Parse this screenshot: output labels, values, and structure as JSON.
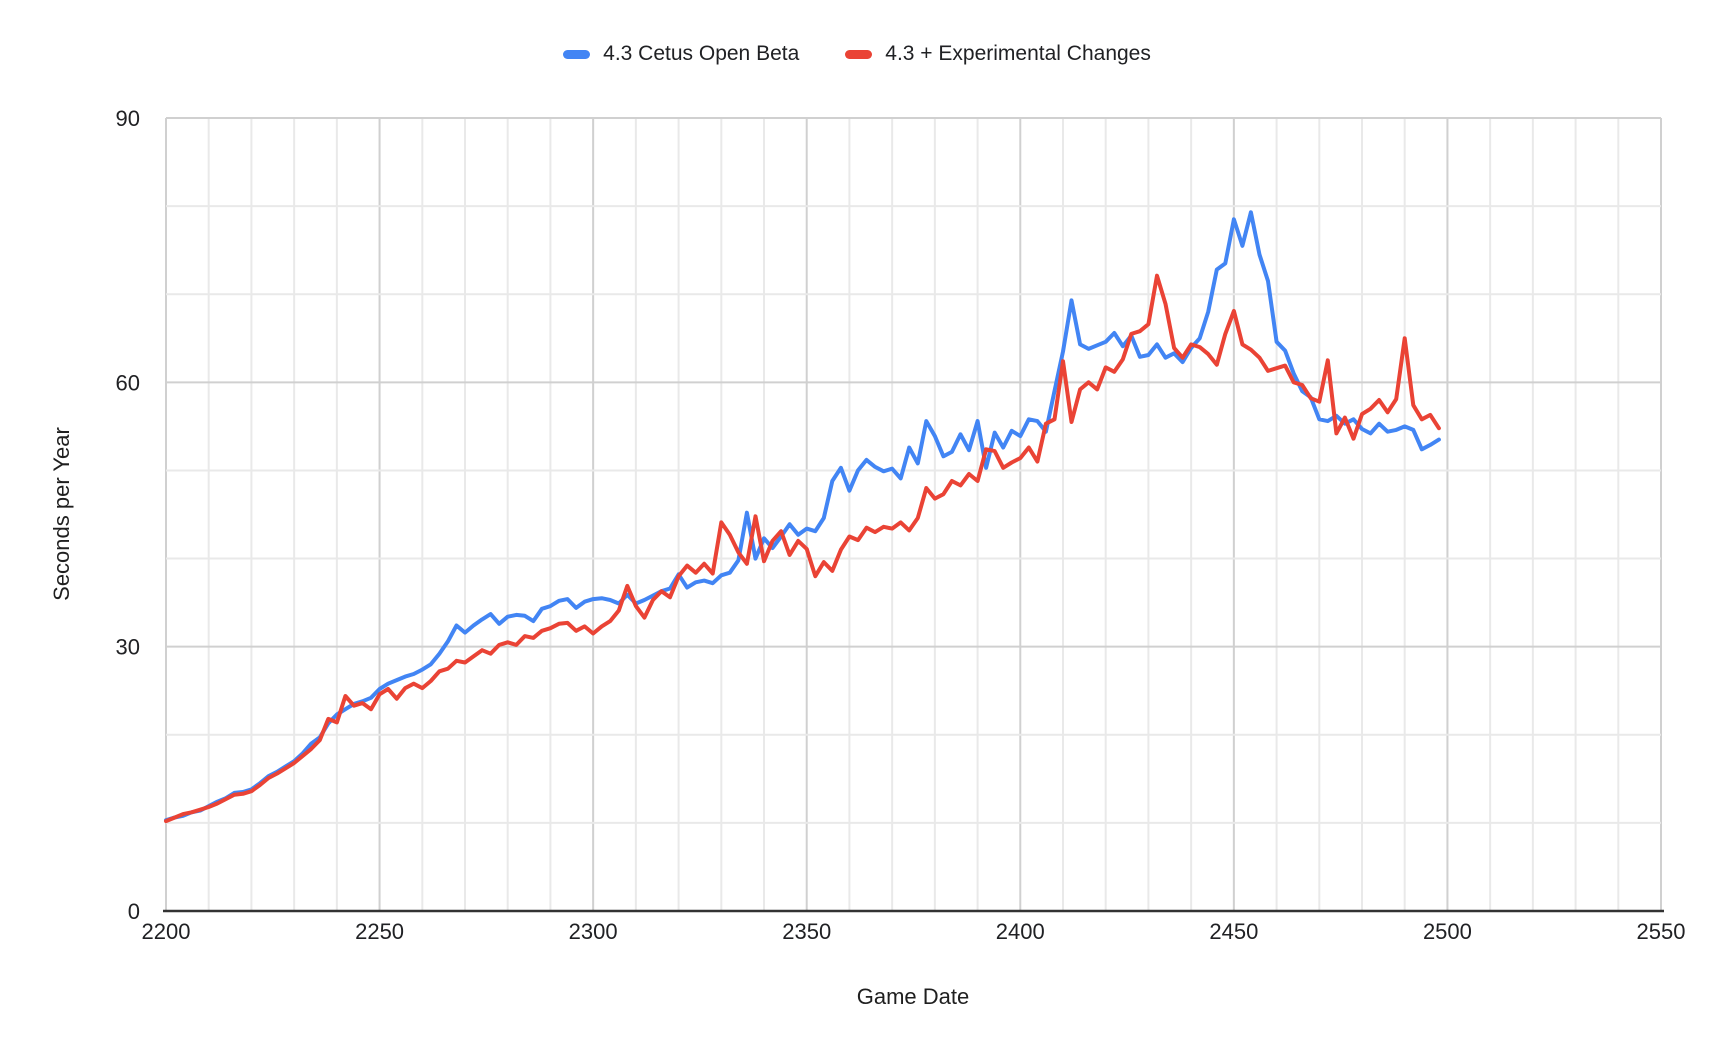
{
  "chart_data": {
    "type": "line",
    "title": "",
    "xlabel": "Game Date",
    "ylabel": "Seconds per Year",
    "xlim": [
      2200,
      2550
    ],
    "ylim": [
      0,
      90
    ],
    "x_ticks": [
      2200,
      2250,
      2300,
      2350,
      2400,
      2450,
      2500,
      2550
    ],
    "y_ticks": [
      0,
      30,
      60,
      90
    ],
    "minor_grid_step_x": 10,
    "minor_grid_step_y": 10,
    "grid": true,
    "legend_position": "top",
    "background_color": "#ffffff",
    "minor_grid_color": "#e9e9e9",
    "major_grid_color": "#d0d0d0",
    "axis_line_color": "#333333",
    "label_color": "#202124",
    "x": [
      2200,
      2202,
      2204,
      2206,
      2208,
      2210,
      2212,
      2214,
      2216,
      2218,
      2220,
      2222,
      2224,
      2226,
      2228,
      2230,
      2232,
      2234,
      2236,
      2238,
      2240,
      2242,
      2244,
      2246,
      2248,
      2250,
      2252,
      2254,
      2256,
      2258,
      2260,
      2262,
      2264,
      2266,
      2268,
      2270,
      2272,
      2274,
      2276,
      2278,
      2280,
      2282,
      2284,
      2286,
      2288,
      2290,
      2292,
      2294,
      2296,
      2298,
      2300,
      2302,
      2304,
      2306,
      2308,
      2310,
      2312,
      2314,
      2316,
      2318,
      2320,
      2322,
      2324,
      2326,
      2328,
      2330,
      2332,
      2334,
      2336,
      2338,
      2340,
      2342,
      2344,
      2346,
      2348,
      2350,
      2352,
      2354,
      2356,
      2358,
      2360,
      2362,
      2364,
      2366,
      2368,
      2370,
      2372,
      2374,
      2376,
      2378,
      2380,
      2382,
      2384,
      2386,
      2388,
      2390,
      2392,
      2394,
      2396,
      2398,
      2400,
      2402,
      2404,
      2406,
      2408,
      2410,
      2412,
      2414,
      2416,
      2418,
      2420,
      2422,
      2424,
      2426,
      2428,
      2430,
      2432,
      2434,
      2436,
      2438,
      2440,
      2442,
      2444,
      2446,
      2448,
      2450,
      2452,
      2454,
      2456,
      2458,
      2460,
      2462,
      2464,
      2466,
      2468,
      2470,
      2472,
      2474,
      2476,
      2478,
      2480,
      2482,
      2484,
      2486,
      2488,
      2490,
      2492,
      2494,
      2496,
      2498
    ],
    "series": [
      {
        "name": "4.3 Cetus Open Beta",
        "color": "#4285F4",
        "values": [
          10.3,
          10.6,
          10.8,
          11.2,
          11.4,
          11.9,
          12.4,
          12.8,
          13.4,
          13.5,
          13.8,
          14.5,
          15.3,
          15.8,
          16.4,
          17.0,
          17.9,
          19.0,
          19.7,
          21.3,
          22.3,
          22.9,
          23.5,
          23.8,
          24.2,
          25.2,
          25.8,
          26.2,
          26.6,
          26.9,
          27.4,
          28.0,
          29.2,
          30.6,
          32.4,
          31.6,
          32.4,
          33.1,
          33.7,
          32.6,
          33.4,
          33.6,
          33.5,
          32.9,
          34.3,
          34.6,
          35.2,
          35.4,
          34.4,
          35.1,
          35.4,
          35.5,
          35.3,
          34.9,
          35.9,
          34.9,
          35.3,
          35.8,
          36.3,
          36.6,
          38.2,
          36.7,
          37.3,
          37.5,
          37.2,
          38.1,
          38.4,
          39.8,
          45.2,
          40.0,
          42.3,
          41.2,
          42.5,
          43.9,
          42.7,
          43.4,
          43.1,
          44.6,
          48.8,
          50.3,
          47.7,
          50.0,
          51.2,
          50.4,
          49.9,
          50.2,
          49.1,
          52.6,
          50.8,
          55.6,
          53.9,
          51.6,
          52.1,
          54.1,
          52.3,
          55.6,
          50.3,
          54.3,
          52.6,
          54.5,
          53.9,
          55.8,
          55.6,
          54.4,
          59.0,
          63.5,
          69.3,
          64.3,
          63.8,
          64.2,
          64.6,
          65.6,
          64.1,
          65.3,
          62.9,
          63.1,
          64.3,
          62.8,
          63.3,
          62.3,
          63.9,
          65.0,
          68.0,
          72.8,
          73.5,
          78.5,
          75.5,
          79.3,
          74.5,
          71.5,
          64.6,
          63.6,
          61.0,
          59.0,
          58.3,
          55.8,
          55.6,
          56.2,
          55.3,
          55.8,
          54.7,
          54.2,
          55.3,
          54.4,
          54.6,
          55.0,
          54.6,
          52.4,
          52.9,
          53.5
        ]
      },
      {
        "name": "4.3 + Experimental Changes",
        "color": "#EA4335",
        "values": [
          10.2,
          10.6,
          11.0,
          11.2,
          11.5,
          11.8,
          12.2,
          12.7,
          13.2,
          13.3,
          13.6,
          14.3,
          15.1,
          15.6,
          16.2,
          16.8,
          17.6,
          18.4,
          19.4,
          21.8,
          21.4,
          24.4,
          23.3,
          23.6,
          22.9,
          24.6,
          25.2,
          24.1,
          25.3,
          25.8,
          25.3,
          26.1,
          27.2,
          27.5,
          28.4,
          28.2,
          28.9,
          29.6,
          29.2,
          30.2,
          30.5,
          30.2,
          31.2,
          31.0,
          31.8,
          32.1,
          32.6,
          32.7,
          31.8,
          32.3,
          31.5,
          32.3,
          32.9,
          34.1,
          36.9,
          34.6,
          33.3,
          35.3,
          36.3,
          35.6,
          38.0,
          39.2,
          38.4,
          39.4,
          38.3,
          44.1,
          42.7,
          40.7,
          39.4,
          44.8,
          39.7,
          42.0,
          43.1,
          40.4,
          42.0,
          41.1,
          38.0,
          39.6,
          38.6,
          41.0,
          42.5,
          42.1,
          43.5,
          43.0,
          43.6,
          43.4,
          44.1,
          43.2,
          44.6,
          48.0,
          46.8,
          47.3,
          48.8,
          48.3,
          49.6,
          48.8,
          52.4,
          52.2,
          50.3,
          50.9,
          51.4,
          52.6,
          51.0,
          55.3,
          55.8,
          62.4,
          55.5,
          59.2,
          60.0,
          59.2,
          61.7,
          61.2,
          62.6,
          65.5,
          65.8,
          66.6,
          72.1,
          68.9,
          63.9,
          62.8,
          64.3,
          64.0,
          63.2,
          62.0,
          65.5,
          68.1,
          64.3,
          63.7,
          62.8,
          61.3,
          61.6,
          61.9,
          60.0,
          59.7,
          58.2,
          57.8,
          62.5,
          54.2,
          56.0,
          53.6,
          56.4,
          57.0,
          58.0,
          56.6,
          58.1,
          65.0,
          57.4,
          55.8,
          56.3,
          54.8
        ]
      }
    ]
  }
}
